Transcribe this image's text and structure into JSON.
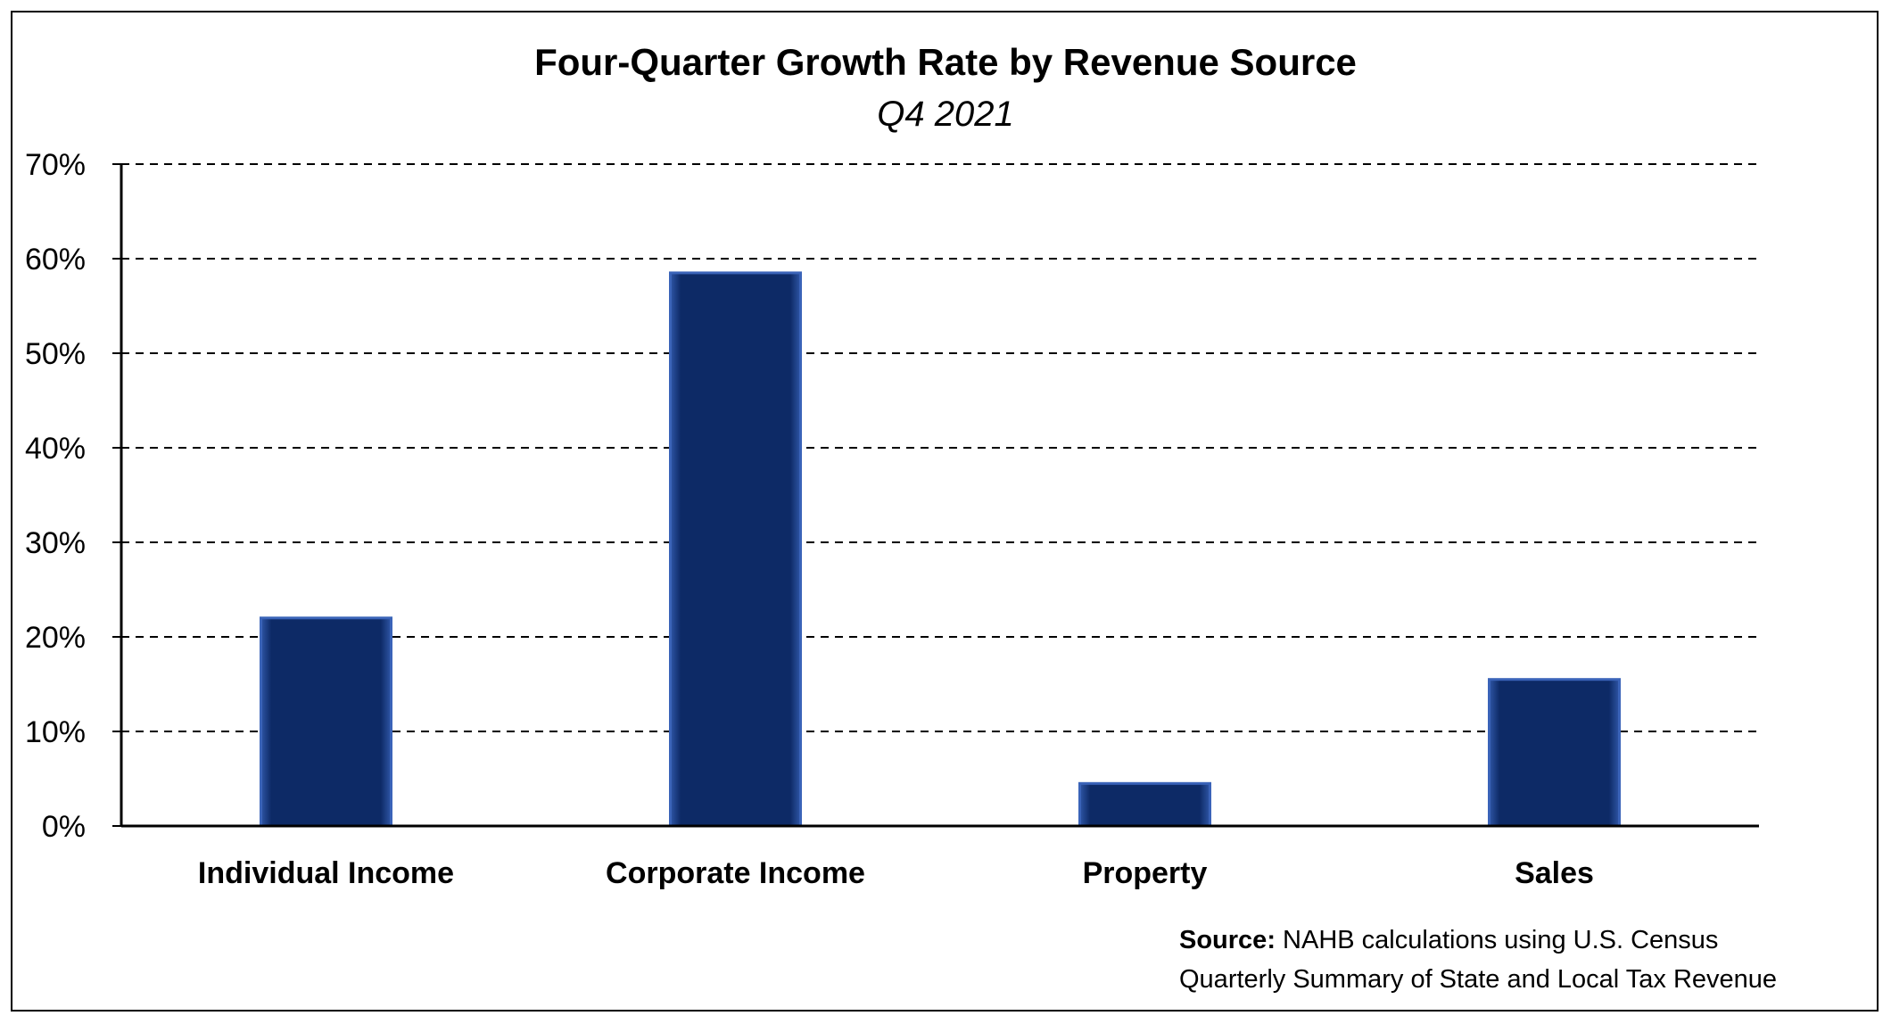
{
  "chart_data": {
    "type": "bar",
    "title": "Four-Quarter Growth Rate by Revenue Source",
    "subtitle": "Q4 2021",
    "categories": [
      "Individual Income",
      "Corporate Income",
      "Property",
      "Sales"
    ],
    "values": [
      22,
      58.5,
      4.5,
      15.5
    ],
    "ylim": [
      0,
      70
    ],
    "yticks": [
      0,
      10,
      20,
      30,
      40,
      50,
      60,
      70
    ],
    "ytick_labels": [
      "0%",
      "10%",
      "20%",
      "30%",
      "40%",
      "50%",
      "60%",
      "70%"
    ],
    "xlabel": "",
    "ylabel": "",
    "grid": true,
    "grid_style": "dashed",
    "bar_color": "#0d2a66",
    "bar_highlight": "#3a63b8"
  },
  "source": {
    "label": "Source:",
    "line1_rest": "NAHB calculations using U.S. Census",
    "line2": "Quarterly Summary of State and Local Tax Revenue"
  }
}
